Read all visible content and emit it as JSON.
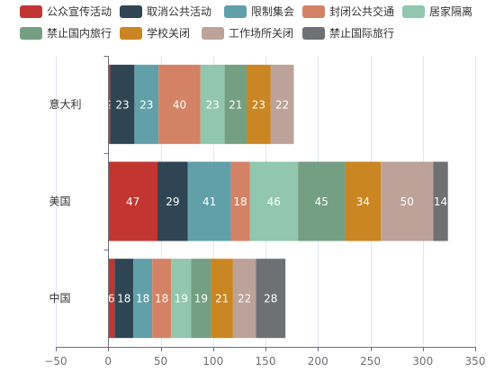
{
  "chart_data": {
    "type": "bar",
    "orientation": "horizontal",
    "stacked": true,
    "categories": [
      "中国",
      "美国",
      "意大利"
    ],
    "series": [
      {
        "name": "公众宣传活动",
        "color": "#c23531",
        "values": [
          6,
          47,
          2
        ]
      },
      {
        "name": "取消公共活动",
        "color": "#2f4554",
        "values": [
          18,
          29,
          23
        ]
      },
      {
        "name": "限制集会",
        "color": "#61a0a8",
        "values": [
          18,
          41,
          23
        ]
      },
      {
        "name": "封闭公共交通",
        "color": "#d48265",
        "values": [
          18,
          18,
          40
        ]
      },
      {
        "name": "居家隔离",
        "color": "#91c7ae",
        "values": [
          19,
          46,
          23
        ]
      },
      {
        "name": "禁止国内旅行",
        "color": "#749f83",
        "values": [
          19,
          45,
          21
        ]
      },
      {
        "name": "学校关闭",
        "color": "#ca8622",
        "values": [
          21,
          34,
          23
        ]
      },
      {
        "name": "工作场所关闭",
        "color": "#bda29a",
        "values": [
          22,
          50,
          22
        ]
      },
      {
        "name": "禁止国际旅行",
        "color": "#6e7074",
        "values": [
          28,
          14,
          0
        ]
      }
    ],
    "xlim": [
      -50,
      350
    ],
    "xticks": [
      "−50",
      "0",
      "50",
      "100",
      "150",
      "200",
      "250",
      "300",
      "350"
    ],
    "grid": true,
    "legend": "top"
  }
}
